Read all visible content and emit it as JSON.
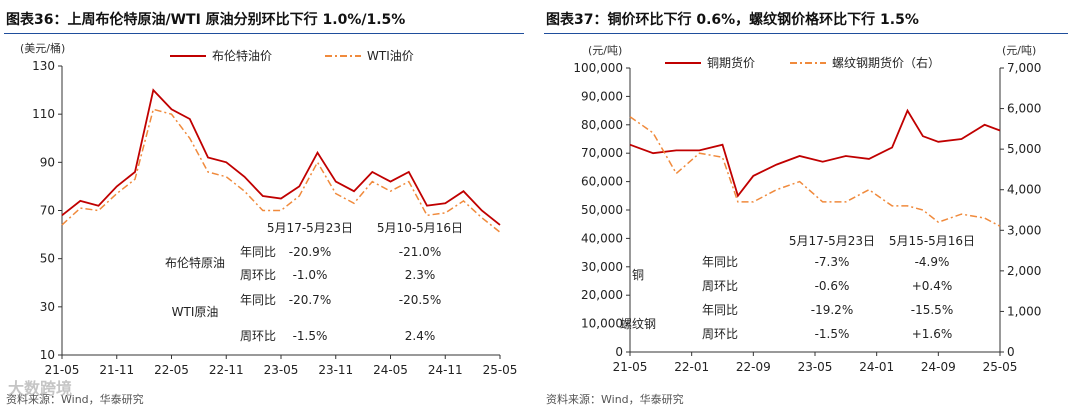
{
  "watermark": "大数跨境",
  "charts": [
    {
      "title": "图表36：上周布伦特原油/WTI 原油分别环比下行 1.0%/1.5%",
      "source": "资料来源：Wind，华泰研究",
      "colors": {
        "series1": "#c00000",
        "series2": "#f08a3c"
      },
      "chart_data": {
        "type": "line",
        "title": "图表36：上周布伦特原油/WTI 原油分别环比下行 1.0%/1.5%",
        "ylabel": "(美元/桶)",
        "ylim": [
          10,
          130
        ],
        "yticks": [
          10,
          30,
          50,
          70,
          90,
          110,
          130
        ],
        "xlabels": [
          "21-05",
          "21-11",
          "22-05",
          "22-11",
          "23-05",
          "23-11",
          "24-05",
          "24-11",
          "25-05"
        ],
        "series": [
          {
            "name": "布伦特油价",
            "style": "solid",
            "axis": "left",
            "x": [
              "21-05",
              "21-07",
              "21-09",
              "21-11",
              "22-01",
              "22-03",
              "22-05",
              "22-07",
              "22-09",
              "22-11",
              "23-01",
              "23-03",
              "23-05",
              "23-07",
              "23-09",
              "23-11",
              "24-01",
              "24-03",
              "24-05",
              "24-07",
              "24-09",
              "24-11",
              "25-01",
              "25-03",
              "25-05"
            ],
            "values": [
              68,
              74,
              72,
              80,
              86,
              120,
              112,
              108,
              92,
              90,
              84,
              76,
              75,
              80,
              94,
              82,
              78,
              86,
              82,
              86,
              72,
              73,
              78,
              70,
              64
            ]
          },
          {
            "name": "WTI油价",
            "style": "dashdot",
            "axis": "left",
            "x": [
              "21-05",
              "21-07",
              "21-09",
              "21-11",
              "22-01",
              "22-03",
              "22-05",
              "22-07",
              "22-09",
              "22-11",
              "23-01",
              "23-03",
              "23-05",
              "23-07",
              "23-09",
              "23-11",
              "24-01",
              "24-03",
              "24-05",
              "24-07",
              "24-09",
              "24-11",
              "25-01",
              "25-03",
              "25-05"
            ],
            "values": [
              64,
              71,
              70,
              77,
              83,
              112,
              110,
              100,
              86,
              84,
              78,
              70,
              70,
              76,
              90,
              77,
              73,
              82,
              78,
              82,
              68,
              69,
              74,
              67,
              61
            ]
          }
        ],
        "annotation_table": {
          "headers": [
            "5月17-5月23日",
            "5月10-5月16日"
          ],
          "rows": [
            {
              "group": "布伦特原油",
              "metric": "年同比",
              "v1": "-20.9%",
              "v2": "-21.0%"
            },
            {
              "group": "",
              "metric": "周环比",
              "v1": "-1.0%",
              "v2": "2.3%"
            },
            {
              "group": "WTI原油",
              "metric": "年同比",
              "v1": "-20.7%",
              "v2": "-20.5%"
            },
            {
              "group": "",
              "metric": "周环比",
              "v1": "-1.5%",
              "v2": "2.4%"
            }
          ]
        }
      }
    },
    {
      "title": "图表37：铜价环比下行 0.6%，螺纹钢价格环比下行 1.5%",
      "source": "资料来源：Wind，华泰研究",
      "colors": {
        "series1": "#c00000",
        "series2": "#f08a3c"
      },
      "chart_data": {
        "type": "line",
        "title": "图表37：铜价环比下行 0.6%，螺纹钢价格环比下行 1.5%",
        "ylabel": "(元/吨)",
        "y2label": "(元/吨)",
        "ylim": [
          0,
          100000
        ],
        "y2lim": [
          0,
          7000
        ],
        "yticks": [
          "0",
          "10,000",
          "20,000",
          "30,000",
          "40,000",
          "50,000",
          "60,000",
          "70,000",
          "80,000",
          "90,000",
          "100,000"
        ],
        "y2ticks": [
          "0",
          "1,000",
          "2,000",
          "3,000",
          "4,000",
          "5,000",
          "6,000",
          "7,000"
        ],
        "xlabels": [
          "21-05",
          "22-01",
          "22-09",
          "23-05",
          "24-01",
          "24-09",
          "25-05"
        ],
        "series": [
          {
            "name": "铜期货价",
            "style": "solid",
            "axis": "left",
            "x": [
              "21-05",
              "21-08",
              "21-11",
              "22-02",
              "22-05",
              "22-07",
              "22-09",
              "22-12",
              "23-03",
              "23-06",
              "23-09",
              "23-12",
              "24-03",
              "24-05",
              "24-07",
              "24-09",
              "24-12",
              "25-03",
              "25-05"
            ],
            "values": [
              73000,
              70000,
              71000,
              71000,
              73000,
              55000,
              62000,
              66000,
              69000,
              67000,
              69000,
              68000,
              72000,
              85000,
              76000,
              74000,
              75000,
              80000,
              78000
            ]
          },
          {
            "name": "螺纹钢期货价（右）",
            "style": "dashdot",
            "axis": "right",
            "x": [
              "21-05",
              "21-08",
              "21-11",
              "22-02",
              "22-05",
              "22-07",
              "22-09",
              "22-12",
              "23-03",
              "23-06",
              "23-09",
              "23-12",
              "24-03",
              "24-05",
              "24-07",
              "24-09",
              "24-12",
              "25-03",
              "25-05"
            ],
            "values": [
              5800,
              5400,
              4400,
              4900,
              4800,
              3700,
              3700,
              4000,
              4200,
              3700,
              3700,
              4000,
              3600,
              3600,
              3500,
              3200,
              3400,
              3300,
              3100
            ]
          }
        ],
        "annotation_table": {
          "headers": [
            "5月17-5月23日",
            "5月15-5月16日"
          ],
          "rows": [
            {
              "group": "铜",
              "metric": "年同比",
              "v1": "-7.3%",
              "v2": "-4.9%"
            },
            {
              "group": "",
              "metric": "周环比",
              "v1": "-0.6%",
              "v2": "+0.4%"
            },
            {
              "group": "螺纹钢",
              "metric": "年同比",
              "v1": "-19.2%",
              "v2": "-15.5%"
            },
            {
              "group": "",
              "metric": "周环比",
              "v1": "-1.5%",
              "v2": "+1.6%"
            }
          ]
        }
      }
    }
  ]
}
